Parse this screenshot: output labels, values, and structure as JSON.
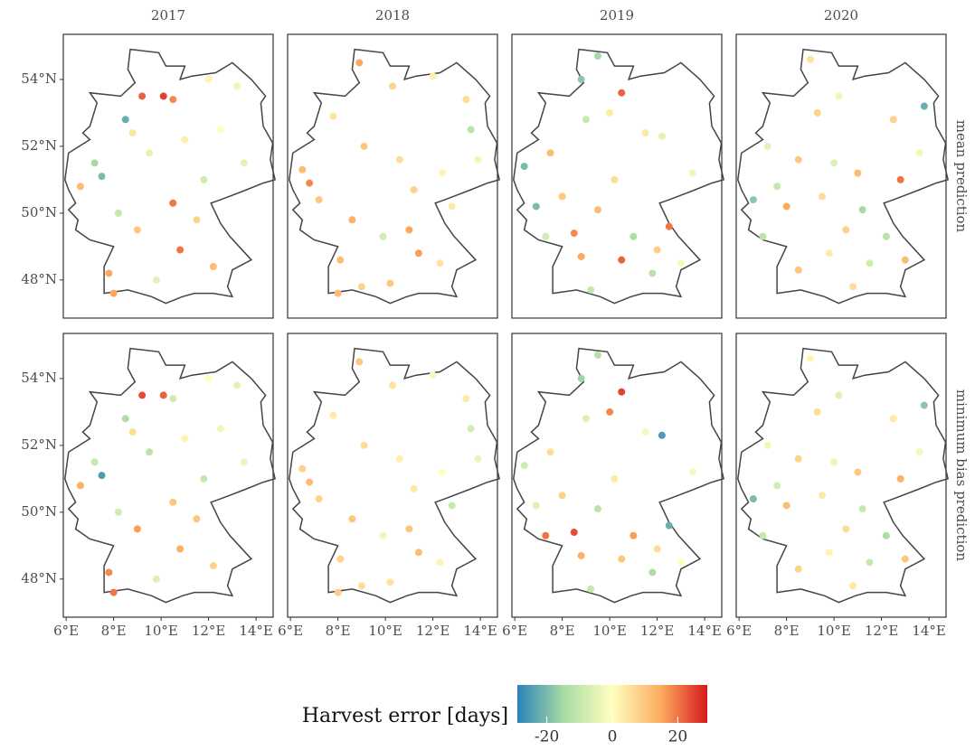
{
  "chart_data": {
    "type": "facet-map",
    "columns": [
      {
        "label": "2017",
        "x": [
          9.2,
          10.1,
          10.5,
          8.5,
          7.5,
          6.6,
          7.2,
          8.8,
          9.5,
          11.0,
          12.5,
          13.2,
          11.8,
          10.5,
          9.0,
          8.2,
          7.8,
          10.8,
          12.2,
          11.5,
          9.8,
          8.0,
          13.5,
          12.0
        ],
        "y": [
          53.5,
          53.5,
          53.4,
          52.8,
          51.1,
          50.8,
          51.5,
          52.4,
          51.8,
          52.2,
          52.5,
          53.8,
          51.0,
          50.3,
          49.5,
          50.0,
          48.2,
          48.9,
          48.4,
          49.8,
          48.0,
          47.6,
          51.5,
          54.0
        ]
      },
      {
        "label": "2018",
        "x": [
          8.9,
          10.3,
          12.0,
          13.6,
          7.8,
          6.5,
          9.1,
          10.6,
          12.4,
          13.9,
          7.2,
          8.6,
          11.2,
          12.8,
          9.9,
          8.1,
          11.4,
          10.2,
          12.3,
          9.0,
          8.0,
          11.0,
          6.8,
          13.4
        ],
        "y": [
          54.5,
          53.8,
          54.1,
          52.5,
          52.9,
          51.3,
          52.0,
          51.6,
          51.2,
          51.6,
          50.4,
          49.8,
          50.7,
          50.2,
          49.3,
          48.6,
          48.8,
          47.9,
          48.5,
          47.8,
          47.6,
          49.5,
          50.9,
          53.4
        ]
      },
      {
        "label": "2019",
        "x": [
          9.5,
          8.8,
          10.5,
          11.5,
          12.2,
          6.4,
          7.5,
          9.0,
          10.2,
          13.5,
          8.0,
          9.5,
          11.0,
          12.5,
          7.3,
          8.8,
          10.5,
          11.8,
          9.2,
          12.0,
          13.0,
          10.0,
          8.5,
          6.9
        ],
        "y": [
          54.7,
          54.0,
          53.6,
          52.4,
          52.3,
          51.4,
          51.8,
          52.8,
          51.0,
          51.2,
          50.5,
          50.1,
          49.3,
          49.6,
          49.3,
          48.7,
          48.6,
          48.2,
          47.7,
          48.9,
          48.5,
          53.0,
          49.4,
          50.2
        ]
      },
      {
        "label": "2020",
        "x": [
          9.0,
          10.2,
          13.8,
          12.5,
          7.2,
          6.6,
          8.5,
          10.0,
          11.0,
          12.8,
          7.6,
          8.0,
          9.5,
          11.2,
          10.5,
          12.2,
          9.8,
          8.5,
          11.5,
          13.0,
          10.8,
          7.0,
          13.6,
          9.3
        ],
        "y": [
          54.6,
          53.5,
          53.2,
          52.8,
          52.0,
          50.4,
          51.6,
          51.5,
          51.2,
          51.0,
          50.8,
          50.2,
          50.5,
          50.1,
          49.5,
          49.3,
          48.8,
          48.3,
          48.5,
          48.6,
          47.8,
          49.3,
          51.8,
          53.0
        ]
      }
    ],
    "rows": [
      {
        "label": "mean prediction",
        "values": [
          [
            22,
            25,
            18,
            -22,
            -20,
            12,
            -15,
            5,
            -5,
            3,
            0,
            -3,
            -8,
            20,
            10,
            -10,
            15,
            20,
            12,
            8,
            -5,
            15,
            -5,
            2
          ],
          [
            15,
            8,
            3,
            -12,
            5,
            12,
            10,
            6,
            2,
            -3,
            10,
            14,
            8,
            4,
            -8,
            12,
            16,
            10,
            5,
            8,
            12,
            15,
            18,
            6
          ],
          [
            -15,
            -18,
            22,
            4,
            -5,
            -20,
            12,
            -10,
            6,
            -3,
            10,
            12,
            -14,
            20,
            -8,
            15,
            22,
            -12,
            -10,
            9,
            -2,
            4,
            18,
            -20
          ],
          [
            5,
            -3,
            -22,
            8,
            -5,
            -18,
            10,
            -6,
            12,
            20,
            -10,
            15,
            6,
            -15,
            8,
            -12,
            4,
            10,
            -8,
            12,
            6,
            -12,
            -3,
            8
          ]
        ]
      },
      {
        "label": "minimum bias prediction",
        "values": [
          [
            24,
            22,
            -8,
            -14,
            -25,
            14,
            -10,
            6,
            -12,
            2,
            -3,
            -5,
            -10,
            10,
            16,
            -8,
            18,
            14,
            8,
            10,
            -6,
            20,
            -4,
            0
          ],
          [
            10,
            5,
            -2,
            -8,
            4,
            8,
            6,
            3,
            0,
            -4,
            8,
            10,
            4,
            -10,
            -3,
            8,
            12,
            5,
            2,
            6,
            9,
            10,
            12,
            4
          ],
          [
            -12,
            -16,
            25,
            -2,
            -25,
            -8,
            6,
            -6,
            4,
            -2,
            8,
            -12,
            16,
            -22,
            20,
            14,
            10,
            -14,
            -10,
            6,
            0,
            18,
            24,
            -6
          ],
          [
            2,
            -6,
            -18,
            4,
            -3,
            -20,
            8,
            -4,
            10,
            14,
            -8,
            12,
            4,
            -10,
            6,
            -14,
            2,
            8,
            -10,
            10,
            4,
            -10,
            -2,
            6
          ]
        ]
      }
    ],
    "xlim": [
      5.88,
      14.72
    ],
    "ylim": [
      46.86,
      55.35
    ],
    "xticks": [
      {
        "value": 6,
        "label": "6°E"
      },
      {
        "value": 8,
        "label": "8°E"
      },
      {
        "value": 10,
        "label": "10°E"
      },
      {
        "value": 12,
        "label": "12°E"
      },
      {
        "value": 14,
        "label": "14°E"
      }
    ],
    "yticks": [
      {
        "value": 48,
        "label": "48°N"
      },
      {
        "value": 50,
        "label": "50°N"
      },
      {
        "value": 52,
        "label": "52°N"
      },
      {
        "value": 54,
        "label": "54°N"
      }
    ],
    "colorbar": {
      "title": "Harvest error [days]",
      "lim": [
        -29,
        29
      ],
      "ticks": [
        -20,
        0,
        20
      ],
      "colors": [
        "#2b83ba",
        "#abdda4",
        "#ffffbf",
        "#fdae61",
        "#d7191c"
      ]
    }
  }
}
